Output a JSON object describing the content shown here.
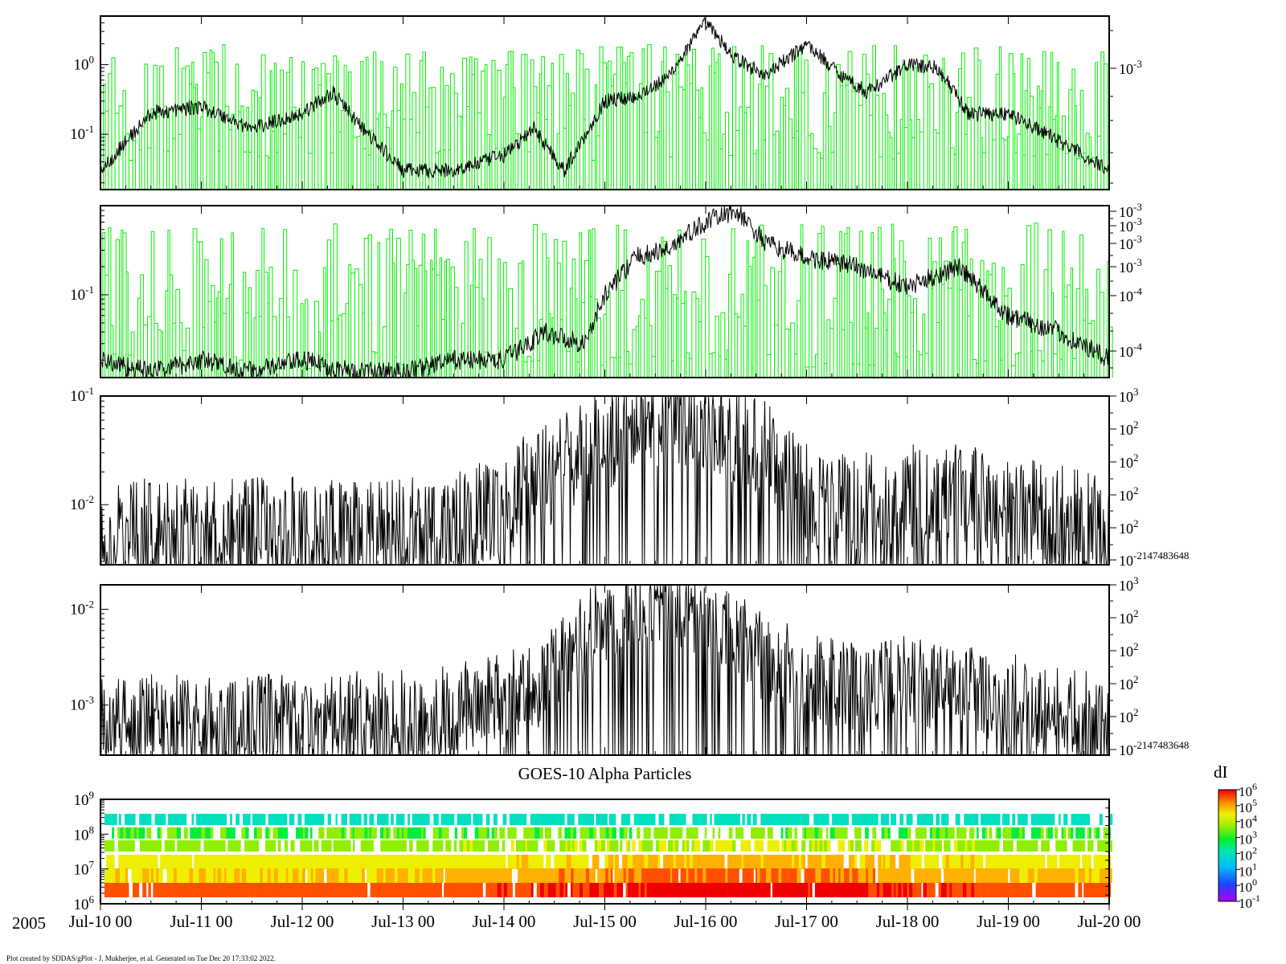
{
  "footer_text": "Plot created by SDDAS/gPlot - J. Mukherjee, et al.  Generated on Tue Dec 20 17:33:02 2022.",
  "year_label": "2005",
  "time_ticks": [
    "Jul-10 00",
    "Jul-11 00",
    "Jul-12 00",
    "Jul-13 00",
    "Jul-14 00",
    "Jul-15 00",
    "Jul-16 00",
    "Jul-17 00",
    "Jul-18 00",
    "Jul-19 00",
    "Jul-20 00"
  ],
  "colors": {
    "green_series": "#00ee00",
    "black_series": "#000000"
  },
  "chart_data": [
    {
      "type": "line",
      "panel": 1,
      "scale": "log",
      "left_tick_labels": [
        {
          "base": "10",
          "exp": "0"
        },
        {
          "base": "10",
          "exp": "-1"
        }
      ],
      "right_tick_labels": [
        {
          "base": "10",
          "exp": "-3"
        }
      ],
      "series": [
        {
          "color": "#000000",
          "x_days": [
            0,
            0.5,
            1,
            1.5,
            2,
            2.3,
            2.6,
            3,
            3.5,
            4,
            4.3,
            4.6,
            5,
            5.3,
            5.6,
            6,
            6.3,
            6.6,
            7,
            7.3,
            7.6,
            8,
            8.3,
            8.6,
            9,
            9.5,
            10
          ],
          "values": [
            0.03,
            0.2,
            0.25,
            0.12,
            0.2,
            0.4,
            0.12,
            0.03,
            0.03,
            0.05,
            0.12,
            0.03,
            0.3,
            0.35,
            0.6,
            4,
            1.2,
            0.7,
            2,
            0.8,
            0.4,
            1,
            0.9,
            0.2,
            0.2,
            0.08,
            0.03
          ]
        },
        {
          "color": "#00ee00",
          "description_free": true
        }
      ]
    },
    {
      "type": "line",
      "panel": 2,
      "scale": "log",
      "left_tick_labels": [
        {
          "base": "10",
          "exp": "-1"
        }
      ],
      "right_tick_labels": [
        {
          "base": "10",
          "exp": "-3"
        },
        {
          "base": "10",
          "exp": "-3"
        },
        {
          "base": "10",
          "exp": "-3"
        },
        {
          "base": "10",
          "exp": "-3"
        },
        {
          "base": "10",
          "exp": "-4"
        },
        {
          "base": "10",
          "exp": "-4"
        }
      ],
      "series": [
        {
          "color": "#000000",
          "x_days": [
            0,
            0.5,
            1,
            1.5,
            2,
            2.5,
            3,
            3.5,
            4,
            4.4,
            4.8,
            5,
            5.3,
            5.6,
            6,
            6.3,
            6.6,
            7,
            7.5,
            8,
            8.5,
            9,
            9.5,
            10
          ],
          "values": [
            0.02,
            0.015,
            0.02,
            0.015,
            0.02,
            0.015,
            0.015,
            0.02,
            0.02,
            0.04,
            0.03,
            0.1,
            0.25,
            0.3,
            0.6,
            0.8,
            0.35,
            0.25,
            0.2,
            0.12,
            0.2,
            0.06,
            0.04,
            0.02
          ]
        },
        {
          "color": "#00ee00",
          "description_free": true
        }
      ]
    },
    {
      "type": "line",
      "panel": 3,
      "scale": "log",
      "left_tick_labels": [
        {
          "base": "10",
          "exp": "-1"
        },
        {
          "base": "10",
          "exp": "-2"
        }
      ],
      "right_tick_labels": [
        {
          "base": "10",
          "exp": "3"
        },
        {
          "base": "10",
          "exp": "2"
        },
        {
          "base": "10",
          "exp": "2"
        },
        {
          "base": "10",
          "exp": "2"
        },
        {
          "base": "10",
          "exp": "2"
        },
        {
          "base": "10",
          "exp": "-2147483648"
        }
      ],
      "series": [
        {
          "color": "#000000",
          "x_days": [
            0,
            1,
            2,
            3,
            3.5,
            4,
            4.2,
            4.5,
            5,
            5.3,
            5.6,
            6,
            6.3,
            6.6,
            7,
            7.5,
            8,
            8.5,
            9,
            9.5,
            10
          ],
          "values": [
            0.006,
            0.006,
            0.006,
            0.006,
            0.007,
            0.01,
            0.015,
            0.02,
            0.04,
            0.06,
            0.07,
            0.06,
            0.04,
            0.03,
            0.012,
            0.01,
            0.012,
            0.012,
            0.01,
            0.008,
            0.006
          ]
        }
      ]
    },
    {
      "type": "line",
      "panel": 4,
      "scale": "log",
      "left_tick_labels": [
        {
          "base": "10",
          "exp": "-2"
        },
        {
          "base": "10",
          "exp": "-3"
        }
      ],
      "right_tick_labels": [
        {
          "base": "10",
          "exp": "3"
        },
        {
          "base": "10",
          "exp": "2"
        },
        {
          "base": "10",
          "exp": "2"
        },
        {
          "base": "10",
          "exp": "2"
        },
        {
          "base": "10",
          "exp": "2"
        },
        {
          "base": "10",
          "exp": "-2147483648"
        }
      ],
      "series": [
        {
          "color": "#000000",
          "x_days": [
            0,
            1,
            2,
            3,
            3.5,
            4,
            4.3,
            4.6,
            5,
            5.2,
            5.5,
            5.8,
            6,
            6.3,
            6.6,
            7,
            7.5,
            8,
            8.5,
            9,
            9.5,
            10
          ],
          "values": [
            0.0007,
            0.0007,
            0.0007,
            0.0008,
            0.0009,
            0.0012,
            0.0015,
            0.003,
            0.008,
            0.012,
            0.013,
            0.01,
            0.007,
            0.005,
            0.003,
            0.002,
            0.0015,
            0.0018,
            0.0015,
            0.0012,
            0.0009,
            0.0007
          ]
        }
      ]
    },
    {
      "type": "heatmap",
      "panel": 5,
      "title": "GOES-10 Alpha Particles",
      "y_tick_labels": [
        {
          "base": "10",
          "exp": "9"
        },
        {
          "base": "10",
          "exp": "8"
        },
        {
          "base": "10",
          "exp": "7"
        },
        {
          "base": "10",
          "exp": "6"
        }
      ],
      "colorbar_label": "dI",
      "colorbar_ticks": [
        {
          "base": "10",
          "exp": "6"
        },
        {
          "base": "10",
          "exp": "5"
        },
        {
          "base": "10",
          "exp": "4"
        },
        {
          "base": "10",
          "exp": "3"
        },
        {
          "base": "10",
          "exp": "2"
        },
        {
          "base": "10",
          "exp": "1"
        },
        {
          "base": "10",
          "exp": "0"
        },
        {
          "base": "10",
          "exp": "-1"
        }
      ],
      "energy_bands_log10": [
        8.55,
        8.25,
        7.95,
        7.55,
        7.2,
        6.9
      ],
      "band_log10_intensity_start": [
        1.6,
        2.6,
        3.0,
        3.6,
        4.0,
        5.0
      ],
      "band_log10_intensity_peak": [
        1.6,
        2.8,
        3.4,
        4.2,
        4.9,
        5.7
      ]
    }
  ]
}
